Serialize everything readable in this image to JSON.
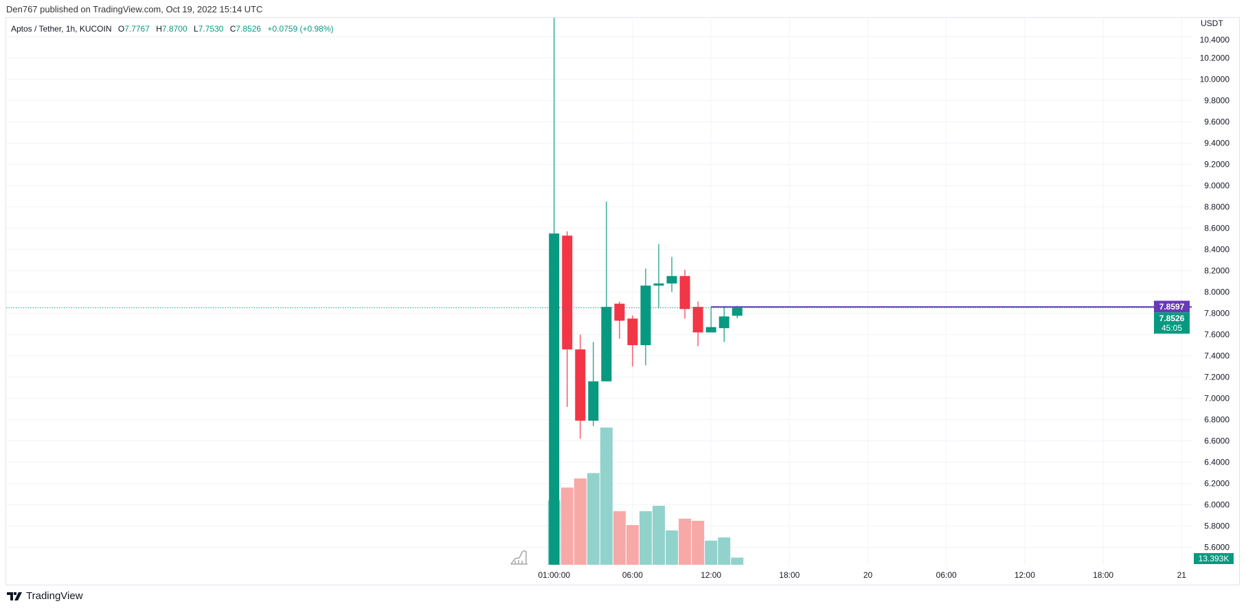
{
  "header": {
    "published": "Den767 published on TradingView.com, Oct 19, 2022 15:14 UTC"
  },
  "legend": {
    "symbol": "Aptos / Tether, 1h, KUCOIN",
    "o_label": "O",
    "o": "7.7767",
    "h_label": "H",
    "h": "7.8700",
    "l_label": "L",
    "l": "7.7530",
    "c_label": "C",
    "c": "7.8526",
    "change": "+0.0759 (+0.98%)"
  },
  "footer": {
    "brand": "TradingView",
    "logo_icon": "tradingview-logo-icon"
  },
  "colors": {
    "up": "#089981",
    "down": "#f23645",
    "up_volume": "#92d2cc",
    "down_volume": "#f7a9a7",
    "alert_line": "#673ab7",
    "grid": "#f0f3fa"
  },
  "chart_data": {
    "type": "candlestick",
    "currency": "USDT",
    "y_ticks": [
      "10.4000",
      "10.2000",
      "10.0000",
      "9.8000",
      "9.6000",
      "9.4000",
      "9.2000",
      "9.0000",
      "8.8000",
      "8.6000",
      "8.4000",
      "8.2000",
      "8.0000",
      "7.8000",
      "7.6000",
      "7.4000",
      "7.2000",
      "7.0000",
      "6.8000",
      "6.6000",
      "6.4000",
      "6.2000",
      "6.0000",
      "5.8000",
      "5.6000"
    ],
    "x_ticks": [
      "01:00:00",
      "06:00",
      "12:00",
      "18:00",
      "20",
      "06:00",
      "12:00",
      "18:00",
      "21"
    ],
    "candles": [
      {
        "o": 5.4,
        "h": 10.9,
        "l": 5.4,
        "c": 8.55,
        "v": 120
      },
      {
        "o": 8.53,
        "h": 8.57,
        "l": 6.92,
        "c": 7.46,
        "v": 144
      },
      {
        "o": 7.46,
        "h": 7.6,
        "l": 6.62,
        "c": 6.79,
        "v": 161
      },
      {
        "o": 6.79,
        "h": 7.53,
        "l": 6.74,
        "c": 7.16,
        "v": 171
      },
      {
        "o": 7.16,
        "h": 8.85,
        "l": 7.16,
        "c": 7.86,
        "v": 256
      },
      {
        "o": 7.89,
        "h": 7.91,
        "l": 7.56,
        "c": 7.73,
        "v": 100
      },
      {
        "o": 7.75,
        "h": 7.78,
        "l": 7.3,
        "c": 7.5,
        "v": 74
      },
      {
        "o": 7.5,
        "h": 8.22,
        "l": 7.31,
        "c": 8.06,
        "v": 100
      },
      {
        "o": 8.06,
        "h": 8.45,
        "l": 7.85,
        "c": 8.08,
        "v": 110
      },
      {
        "o": 8.08,
        "h": 8.33,
        "l": 8.0,
        "c": 8.15,
        "v": 64
      },
      {
        "o": 8.15,
        "h": 8.21,
        "l": 7.75,
        "c": 7.84,
        "v": 86
      },
      {
        "o": 7.86,
        "h": 7.91,
        "l": 7.49,
        "c": 7.62,
        "v": 82
      },
      {
        "o": 7.62,
        "h": 7.86,
        "l": 7.62,
        "c": 7.67,
        "v": 45
      },
      {
        "o": 7.66,
        "h": 7.86,
        "l": 7.53,
        "c": 7.77,
        "v": 51
      },
      {
        "o": 7.7767,
        "h": 7.87,
        "l": 7.753,
        "c": 7.8526,
        "v": 13.393
      }
    ],
    "last_price": "7.8526",
    "countdown": "45:05",
    "alert_price": "7.8597",
    "volume_label": "13.393K"
  }
}
